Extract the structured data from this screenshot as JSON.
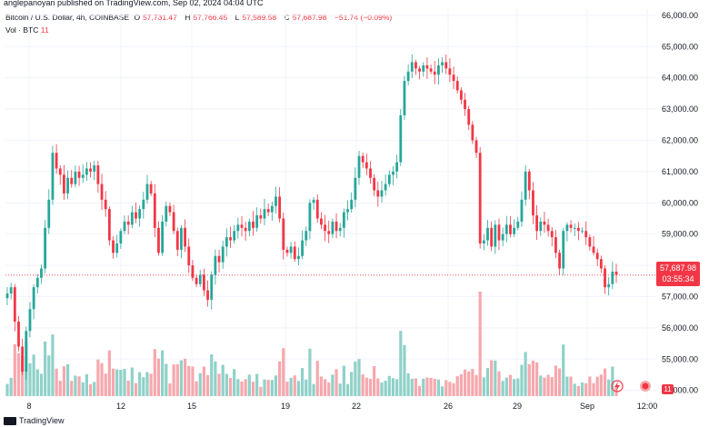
{
  "header": {
    "publisher_line": "anglepanoyan published on TradingView.com, Sep 02, 2024 04:04 UTC"
  },
  "legend": {
    "symbol": "Bitcoin / U.S. Dollar, 4h, COINBASE",
    "open_label": "O",
    "open_value": "57,731.47",
    "high_label": "H",
    "high_value": "57,766.45",
    "low_label": "L",
    "low_value": "57,589.58",
    "close_label": "C",
    "close_value": "57,687.98",
    "change": "−51.74 (−0.09%)",
    "volume_label": "Vol · BTC",
    "volume_value": "11"
  },
  "price_tag": {
    "price": "57,687.98",
    "countdown": "03:55:34"
  },
  "volume_tag": "11",
  "footer": {
    "brand": "TradingView"
  },
  "colors": {
    "up": "#26a69a",
    "down": "#f23645",
    "vol_up": "#8fd1c9",
    "vol_down": "#f6a8ad"
  },
  "chart_data": {
    "type": "candlestick",
    "y_ticks": [
      "66,000.00",
      "65,000.00",
      "64,000.00",
      "63,000.00",
      "62,000.00",
      "61,000.00",
      "60,000.00",
      "59,000.00",
      "58,000.00",
      "57,000.00",
      "56,000.00",
      "55,000.00",
      "54,000.00"
    ],
    "x_ticks": [
      "8",
      "12",
      "15",
      "19",
      "22",
      "26",
      "29",
      "Sep",
      "12:00"
    ],
    "ylim": [
      53700,
      66200
    ],
    "last_price": 57687.98,
    "close_series": [
      57100,
      57300,
      56200,
      55400,
      54600,
      55900,
      56600,
      57300,
      57600,
      57900,
      59200,
      60100,
      61600,
      61100,
      60900,
      60300,
      60800,
      60600,
      61000,
      60800,
      60900,
      61100,
      61000,
      61200,
      60600,
      60100,
      59800,
      58800,
      58400,
      58700,
      59100,
      59400,
      59300,
      59700,
      59500,
      59800,
      60100,
      60600,
      60300,
      59200,
      58400,
      59400,
      59900,
      59700,
      59100,
      58500,
      59200,
      58600,
      58000,
      57600,
      57400,
      57700,
      57200,
      56900,
      57700,
      58300,
      58100,
      58600,
      58900,
      58800,
      59100,
      59300,
      59200,
      59100,
      59400,
      59200,
      59600,
      59500,
      59800,
      59700,
      59900,
      60200,
      59500,
      58500,
      58400,
      58600,
      58200,
      58300,
      58800,
      59100,
      60000,
      60100,
      59500,
      59300,
      59100,
      59000,
      59400,
      59100,
      59200,
      59700,
      59800,
      60100,
      60800,
      61500,
      61300,
      61100,
      60800,
      60400,
      60200,
      60400,
      60600,
      60900,
      61000,
      61300,
      62800,
      63900,
      64200,
      64500,
      64300,
      64200,
      64400,
      64300,
      64200,
      64100,
      64400,
      64500,
      64300,
      64100,
      63900,
      63600,
      63300,
      63000,
      62500,
      62000,
      61600,
      58700,
      58800,
      59200,
      58600,
      59300,
      58800,
      59000,
      59300,
      59000,
      59200,
      59400,
      60100,
      61000,
      60400,
      59600,
      59100,
      59400,
      59300,
      59100,
      58900,
      58400,
      57900,
      59100,
      59300,
      59200,
      59200,
      59100,
      59100,
      58900,
      58600,
      58400,
      58200,
      57900,
      57300,
      57400,
      57800,
      57700
    ]
  }
}
